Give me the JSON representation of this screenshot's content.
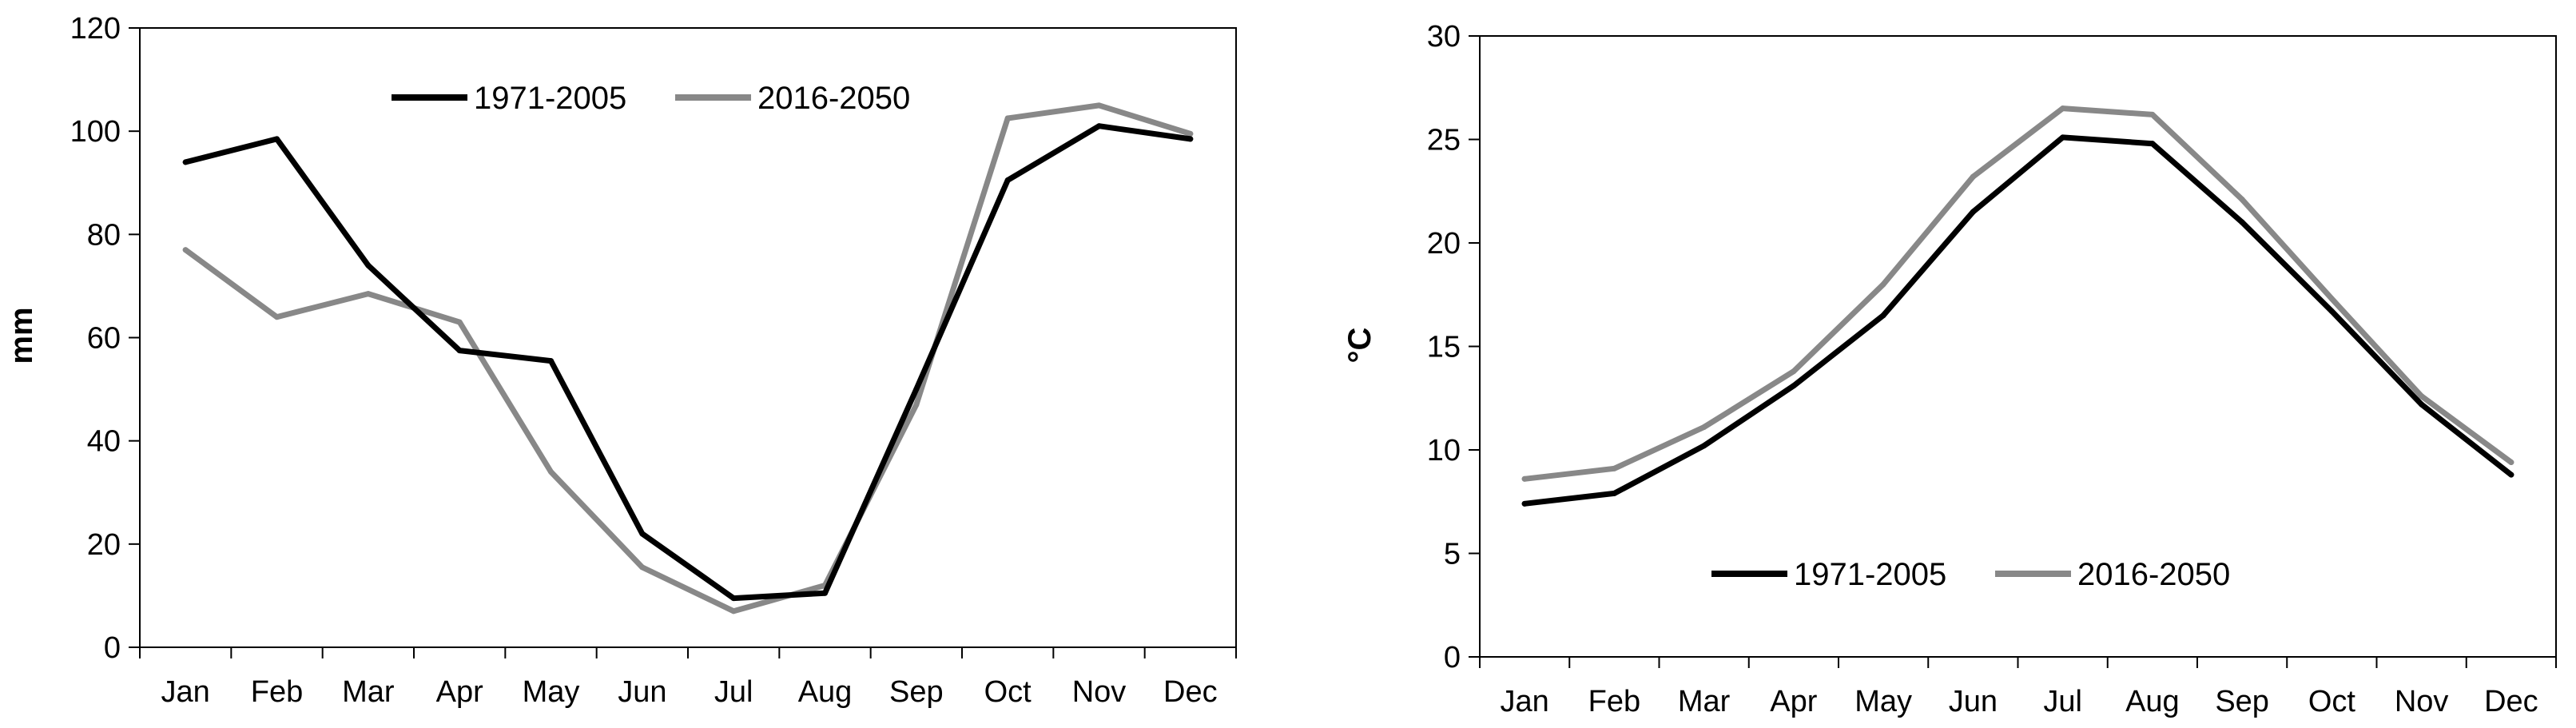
{
  "chart_data": [
    {
      "type": "line",
      "categories": [
        "Jan",
        "Feb",
        "Mar",
        "Apr",
        "May",
        "Jun",
        "Jul",
        "Aug",
        "Sep",
        "Oct",
        "Nov",
        "Dec"
      ],
      "ylabel": "mm",
      "xlabel": "",
      "ylim": [
        0,
        120
      ],
      "yticks": [
        0,
        20,
        40,
        60,
        80,
        100,
        120
      ],
      "grid": false,
      "legend": "top-center",
      "series": [
        {
          "name": "1971-2005",
          "color": "#000000",
          "values": [
            94,
            98.5,
            74,
            57.5,
            55.5,
            22,
            9.5,
            10.5,
            50,
            90.5,
            101,
            98.5
          ]
        },
        {
          "name": "2016-2050",
          "color": "#888888",
          "values": [
            77,
            64,
            68.5,
            63,
            34,
            15.5,
            7,
            12,
            47,
            102.5,
            105,
            99.5
          ]
        }
      ]
    },
    {
      "type": "line",
      "categories": [
        "Jan",
        "Feb",
        "Mar",
        "Apr",
        "May",
        "Jun",
        "Jul",
        "Aug",
        "Sep",
        "Oct",
        "Nov",
        "Dec"
      ],
      "ylabel": "°C",
      "xlabel": "",
      "ylim": [
        0,
        30
      ],
      "yticks": [
        0,
        5,
        10,
        15,
        20,
        25,
        30
      ],
      "grid": false,
      "legend": "bottom-center",
      "series": [
        {
          "name": "1971-2005",
          "color": "#000000",
          "values": [
            7.4,
            7.9,
            10.2,
            13.1,
            16.5,
            21.5,
            25.1,
            24.8,
            21.0,
            16.7,
            12.2,
            8.8
          ]
        },
        {
          "name": "2016-2050",
          "color": "#888888",
          "values": [
            8.6,
            9.1,
            11.1,
            13.8,
            18.0,
            23.2,
            26.5,
            26.2,
            22.1,
            17.3,
            12.6,
            9.4
          ]
        }
      ]
    }
  ]
}
